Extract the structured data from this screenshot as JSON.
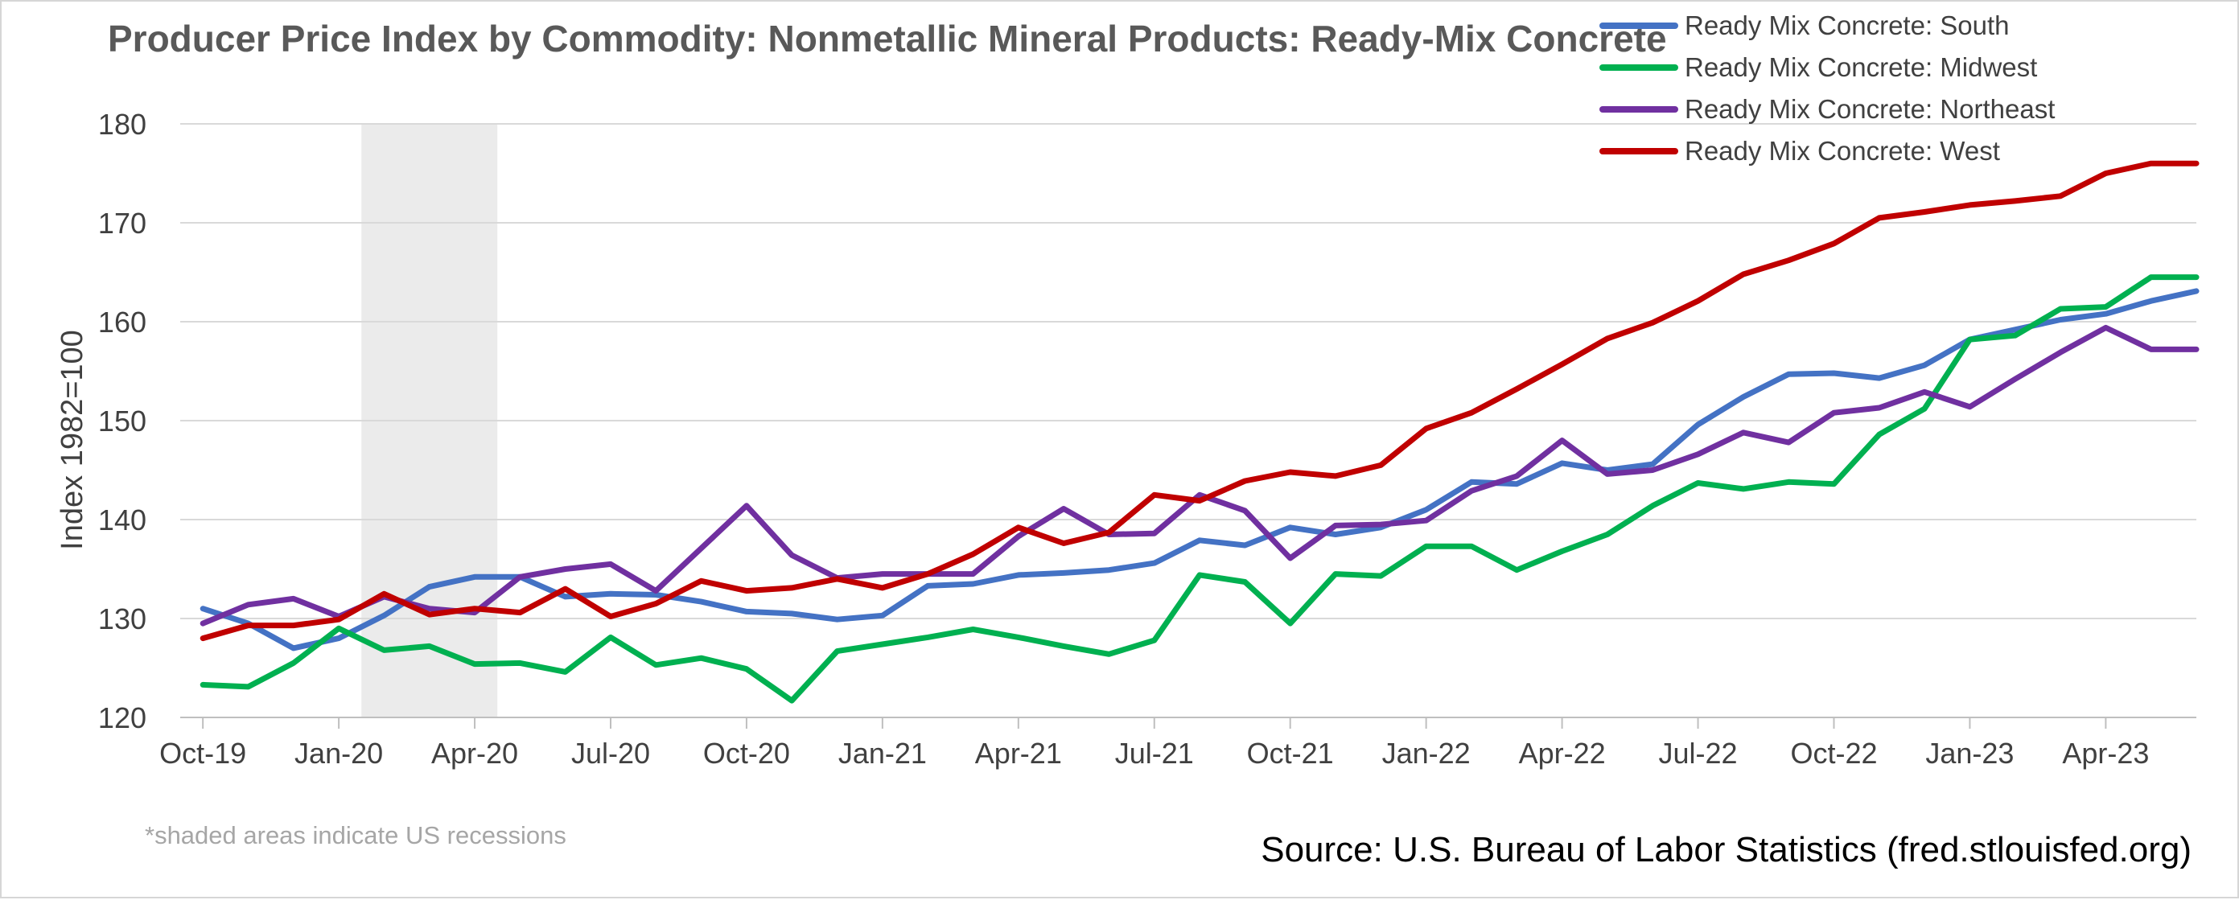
{
  "chart_data": {
    "type": "line",
    "title": "Producer Price Index by Commodity: Nonmetallic Mineral Products: Ready-Mix Concrete",
    "ylabel": "Index 1982=100",
    "xlabel": "",
    "ylim": [
      120,
      180
    ],
    "yticks": [
      "120",
      "130",
      "140",
      "150",
      "160",
      "170",
      "180"
    ],
    "grid": "horizontal",
    "legend_position": "top-right",
    "x": [
      "2019-10",
      "2019-11",
      "2019-12",
      "2020-01",
      "2020-02",
      "2020-03",
      "2020-04",
      "2020-05",
      "2020-06",
      "2020-07",
      "2020-08",
      "2020-09",
      "2020-10",
      "2020-11",
      "2020-12",
      "2021-01",
      "2021-02",
      "2021-03",
      "2021-04",
      "2021-05",
      "2021-06",
      "2021-07",
      "2021-08",
      "2021-09",
      "2021-10",
      "2021-11",
      "2021-12",
      "2022-01",
      "2022-02",
      "2022-03",
      "2022-04",
      "2022-05",
      "2022-06",
      "2022-07",
      "2022-08",
      "2022-09",
      "2022-10",
      "2022-11",
      "2022-12",
      "2023-01",
      "2023-02",
      "2023-03",
      "2023-04",
      "2023-05",
      "2023-06"
    ],
    "xticks": [
      {
        "label": "Oct-19",
        "x": "2019-10"
      },
      {
        "label": "Jan-20",
        "x": "2020-01"
      },
      {
        "label": "Apr-20",
        "x": "2020-04"
      },
      {
        "label": "Jul-20",
        "x": "2020-07"
      },
      {
        "label": "Oct-20",
        "x": "2020-10"
      },
      {
        "label": "Jan-21",
        "x": "2021-01"
      },
      {
        "label": "Apr-21",
        "x": "2021-04"
      },
      {
        "label": "Jul-21",
        "x": "2021-07"
      },
      {
        "label": "Oct-21",
        "x": "2021-10"
      },
      {
        "label": "Jan-22",
        "x": "2022-01"
      },
      {
        "label": "Apr-22",
        "x": "2022-04"
      },
      {
        "label": "Jul-22",
        "x": "2022-07"
      },
      {
        "label": "Oct-22",
        "x": "2022-10"
      },
      {
        "label": "Jan-23",
        "x": "2023-01"
      },
      {
        "label": "Apr-23",
        "x": "2023-04"
      }
    ],
    "recession": {
      "start": "2020-02",
      "end": "2020-04"
    },
    "series": [
      {
        "name": "Ready Mix Concrete: South",
        "color": "#4472c4",
        "values": [
          131.0,
          129.5,
          127.0,
          128.0,
          130.3,
          133.2,
          134.2,
          134.2,
          132.2,
          132.5,
          132.4,
          131.7,
          130.7,
          130.5,
          129.9,
          130.3,
          133.3,
          133.5,
          134.4,
          134.6,
          134.9,
          135.6,
          137.9,
          137.4,
          139.2,
          138.5,
          139.2,
          141.0,
          143.8,
          143.6,
          145.7,
          145.0,
          145.6,
          149.6,
          152.4,
          154.7,
          154.8,
          154.3,
          155.6,
          158.2,
          159.2,
          160.2,
          160.8,
          162.1,
          163.1
        ]
      },
      {
        "name": "Ready Mix Concrete: Midwest",
        "color": "#00b050",
        "values": [
          123.3,
          123.1,
          125.5,
          129.0,
          126.8,
          127.2,
          125.4,
          125.5,
          124.6,
          128.1,
          125.3,
          126.0,
          124.9,
          121.7,
          126.7,
          127.4,
          128.1,
          128.9,
          128.1,
          127.2,
          126.4,
          127.8,
          134.4,
          133.7,
          129.5,
          134.5,
          134.3,
          137.3,
          137.3,
          134.9,
          136.8,
          138.5,
          141.4,
          143.7,
          143.1,
          143.8,
          143.6,
          148.6,
          151.2,
          158.2,
          158.6,
          161.3,
          161.5,
          164.5,
          164.5
        ]
      },
      {
        "name": "Ready Mix Concrete: Northeast",
        "color": "#7030a0",
        "values": [
          129.5,
          131.4,
          132.0,
          130.2,
          132.2,
          131.0,
          130.6,
          134.2,
          135.0,
          135.5,
          132.8,
          137.1,
          141.4,
          136.4,
          134.1,
          134.5,
          134.5,
          134.5,
          138.3,
          141.1,
          138.5,
          138.6,
          142.5,
          140.9,
          136.1,
          139.4,
          139.5,
          139.9,
          142.9,
          144.4,
          148.0,
          144.6,
          145.0,
          146.6,
          148.8,
          147.8,
          150.8,
          151.3,
          152.9,
          151.4,
          154.2,
          156.9,
          159.4,
          157.2,
          157.2
        ]
      },
      {
        "name": "Ready Mix Concrete: West",
        "color": "#c00000",
        "values": [
          128.0,
          129.3,
          129.3,
          129.9,
          132.5,
          130.4,
          131.0,
          130.6,
          133.0,
          130.2,
          131.5,
          133.8,
          132.8,
          133.1,
          134.0,
          133.1,
          134.5,
          136.5,
          139.2,
          137.6,
          138.7,
          142.5,
          141.9,
          143.9,
          144.8,
          144.4,
          145.5,
          149.2,
          150.8,
          153.2,
          155.7,
          158.3,
          159.9,
          162.1,
          164.8,
          166.2,
          167.9,
          170.5,
          171.1,
          171.8,
          172.2,
          172.7,
          175.0,
          176.0,
          176.0
        ]
      }
    ],
    "footnote": "*shaded areas indicate US recessions",
    "source": "Source: U.S. Bureau of Labor Statistics (fred.stlouisfed.org)"
  }
}
